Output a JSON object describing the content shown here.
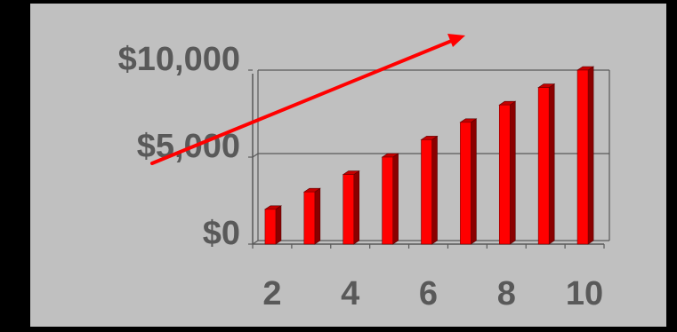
{
  "chart_data": {
    "type": "bar",
    "x": [
      2,
      3,
      4,
      5,
      6,
      7,
      8,
      9,
      10
    ],
    "values": [
      2000,
      3000,
      4000,
      5000,
      6000,
      7000,
      8000,
      9000,
      10000
    ],
    "x_tick_labels": [
      "2",
      "4",
      "6",
      "8",
      "10"
    ],
    "y_tick_labels": [
      "$0",
      "$5,000",
      "$10,000"
    ],
    "ylim": [
      0,
      10000
    ],
    "y_gridlines": [
      5000
    ],
    "grid": true,
    "legend": "none",
    "title": "",
    "xlabel": "",
    "ylabel": "",
    "bar_style": "3d",
    "annotation": {
      "type": "arrow",
      "direction": "up-right"
    }
  },
  "colors": {
    "background": "#c0c0c0",
    "frame": "#000000",
    "bar_front": "#ff0000",
    "bar_side": "#8a0000",
    "bar_top": "#c40000",
    "arrow": "#ff0000",
    "axis": "#595959",
    "text": "#595959"
  }
}
